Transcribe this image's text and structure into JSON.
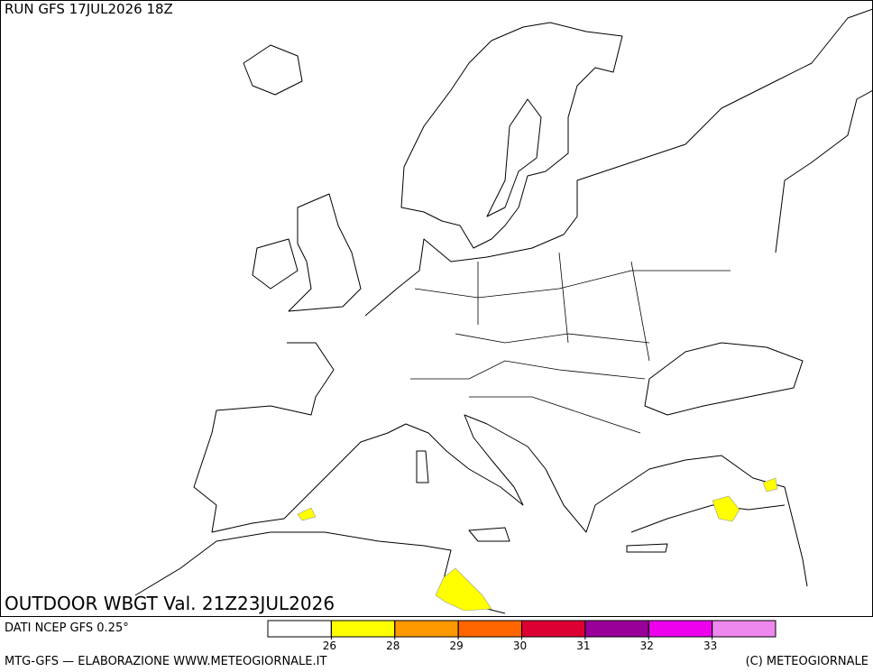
{
  "header": {
    "run": "RUN GFS 17JUL2026 18Z"
  },
  "map": {
    "title": "OUTDOOR WBGT Val. 21Z23JUL2026"
  },
  "footer": {
    "source": "DATI NCEP GFS 0.25°",
    "credits": "MTG-GFS — ELABORAZIONE WWW.METEOGIORNALE.IT",
    "copyright": "(C) METEOGIORNALE"
  },
  "legend": {
    "colors": [
      "#ffffff",
      "#ffff00",
      "#ff9900",
      "#ff6600",
      "#dd0033",
      "#990099",
      "#ee00ee",
      "#ee88ee"
    ],
    "ticks": [
      26,
      28,
      29,
      30,
      31,
      32,
      33
    ]
  }
}
